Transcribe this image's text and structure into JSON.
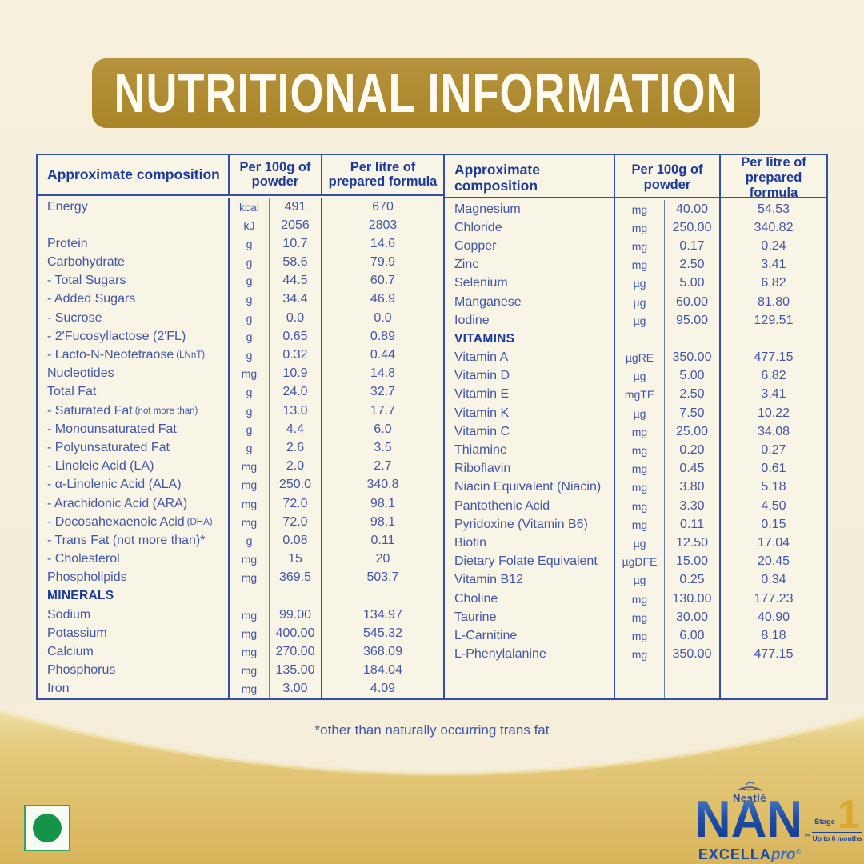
{
  "title": "NUTRITIONAL INFORMATION",
  "footnote": "*other than naturally occurring trans fat",
  "colors": {
    "banner_gold": "#ae8b30",
    "table_blue_line": "#33519f",
    "table_text_blue": "#4356a6",
    "header_text_blue": "#1c3a9a",
    "footer_gold": "#e2c474",
    "nan_blue": "#1f4da6",
    "stage_gold": "#d9a92e",
    "veg_green": "#15934b"
  },
  "icons": {
    "vegetarian_mark": "green-dot",
    "nestle_nest": "bird-nest"
  },
  "table": {
    "headers": {
      "composition": "Approximate composition",
      "per_100g": "Per 100g of powder",
      "per_litre": "Per litre of prepared formula"
    },
    "left": {
      "rows": [
        {
          "n": "Energy",
          "u": "kcal",
          "a": "491",
          "b": "670"
        },
        {
          "n": "",
          "u": "kJ",
          "a": "2056",
          "b": "2803"
        },
        {
          "n": "Protein",
          "u": "g",
          "a": "10.7",
          "b": "14.6"
        },
        {
          "n": "Carbohydrate",
          "u": "g",
          "a": "58.6",
          "b": "79.9"
        },
        {
          "n": "- Total Sugars",
          "u": "g",
          "a": "44.5",
          "b": "60.7"
        },
        {
          "n": "- Added Sugars",
          "u": "g",
          "a": "34.4",
          "b": "46.9"
        },
        {
          "n": "- Sucrose",
          "u": "g",
          "a": "0.0",
          "b": "0.0"
        },
        {
          "n": "- 2'Fucosyllactose (2'FL)",
          "u": "g",
          "a": "0.65",
          "b": "0.89"
        },
        {
          "n": "- Lacto-N-Neotetraose",
          "note": "(LNnT)",
          "u": "g",
          "a": "0.32",
          "b": "0.44"
        },
        {
          "n": "Nucleotides",
          "u": "mg",
          "a": "10.9",
          "b": "14.8"
        },
        {
          "n": "Total Fat",
          "u": "g",
          "a": "24.0",
          "b": "32.7"
        },
        {
          "n": "- Saturated Fat",
          "note": "(not more than)",
          "u": "g",
          "a": "13.0",
          "b": "17.7"
        },
        {
          "n": "- Monounsaturated Fat",
          "u": "g",
          "a": "4.4",
          "b": "6.0"
        },
        {
          "n": "- Polyunsaturated Fat",
          "u": "g",
          "a": "2.6",
          "b": "3.5"
        },
        {
          "n": "- Linoleic Acid (LA)",
          "u": "mg",
          "a": "2.0",
          "b": "2.7"
        },
        {
          "n": "- α-Linolenic Acid (ALA)",
          "u": "mg",
          "a": "250.0",
          "b": "340.8"
        },
        {
          "n": "- Arachidonic Acid (ARA)",
          "u": "mg",
          "a": "72.0",
          "b": "98.1"
        },
        {
          "n": "- Docosahexaenoic Acid",
          "note": "(DHA)",
          "u": "mg",
          "a": "72.0",
          "b": "98.1"
        },
        {
          "n": "- Trans Fat (not more than)*",
          "u": "g",
          "a": "0.08",
          "b": "0.11"
        },
        {
          "n": "- Cholesterol",
          "u": "mg",
          "a": "15",
          "b": "20"
        },
        {
          "n": "Phospholipids",
          "u": "mg",
          "a": "369.5",
          "b": "503.7"
        },
        {
          "n": "MINERALS",
          "type": "section",
          "u": "",
          "a": "",
          "b": ""
        },
        {
          "n": "Sodium",
          "u": "mg",
          "a": "99.00",
          "b": "134.97"
        },
        {
          "n": "Potassium",
          "u": "mg",
          "a": "400.00",
          "b": "545.32"
        },
        {
          "n": "Calcium",
          "u": "mg",
          "a": "270.00",
          "b": "368.09"
        },
        {
          "n": "Phosphorus",
          "u": "mg",
          "a": "135.00",
          "b": "184.04"
        },
        {
          "n": "Iron",
          "u": "mg",
          "a": "3.00",
          "b": "4.09"
        }
      ]
    },
    "right": {
      "rows": [
        {
          "n": "Magnesium",
          "u": "mg",
          "a": "40.00",
          "b": "54.53"
        },
        {
          "n": "Chloride",
          "u": "mg",
          "a": "250.00",
          "b": "340.82"
        },
        {
          "n": "Copper",
          "u": "mg",
          "a": "0.17",
          "b": "0.24"
        },
        {
          "n": "Zinc",
          "u": "mg",
          "a": "2.50",
          "b": "3.41"
        },
        {
          "n": "Selenium",
          "u": "µg",
          "a": "5.00",
          "b": "6.82"
        },
        {
          "n": "Manganese",
          "u": "µg",
          "a": "60.00",
          "b": "81.80"
        },
        {
          "n": "Iodine",
          "u": "µg",
          "a": "95.00",
          "b": "129.51"
        },
        {
          "n": "VITAMINS",
          "type": "section",
          "u": "",
          "a": "",
          "b": ""
        },
        {
          "n": "Vitamin A",
          "u": "µgRE",
          "a": "350.00",
          "b": "477.15"
        },
        {
          "n": "Vitamin D",
          "u": "µg",
          "a": "5.00",
          "b": "6.82"
        },
        {
          "n": "Vitamin E",
          "u": "mgTE",
          "a": "2.50",
          "b": "3.41"
        },
        {
          "n": "Vitamin K",
          "u": "µg",
          "a": "7.50",
          "b": "10.22"
        },
        {
          "n": "Vitamin C",
          "u": "mg",
          "a": "25.00",
          "b": "34.08"
        },
        {
          "n": "Thiamine",
          "u": "mg",
          "a": "0.20",
          "b": "0.27"
        },
        {
          "n": "Riboflavin",
          "u": "mg",
          "a": "0.45",
          "b": "0.61"
        },
        {
          "n": "Niacin Equivalent (Niacin)",
          "u": "mg",
          "a": "3.80",
          "b": "5.18"
        },
        {
          "n": "Pantothenic Acid",
          "u": "mg",
          "a": "3.30",
          "b": "4.50"
        },
        {
          "n": "Pyridoxine (Vitamin B6)",
          "u": "mg",
          "a": "0.11",
          "b": "0.15"
        },
        {
          "n": "Biotin",
          "u": "µg",
          "a": "12.50",
          "b": "17.04"
        },
        {
          "n": "Dietary Folate Equivalent",
          "u": "µgDFE",
          "a": "15.00",
          "b": "20.45"
        },
        {
          "n": "Vitamin B12",
          "u": "µg",
          "a": "0.25",
          "b": "0.34"
        },
        {
          "n": "Choline",
          "u": "mg",
          "a": "130.00",
          "b": "177.23"
        },
        {
          "n": "Taurine",
          "u": "mg",
          "a": "30.00",
          "b": "40.90"
        },
        {
          "n": "L-Carnitine",
          "u": "mg",
          "a": "6.00",
          "b": "8.18"
        },
        {
          "n": "L-Phenylalanine",
          "u": "mg",
          "a": "350.00",
          "b": "477.15"
        }
      ]
    }
  },
  "brand": {
    "nestle": "Nestlé",
    "name": "NAN",
    "trademark": "™",
    "sub_bold": "EXCELLA",
    "sub_italic": "pro",
    "sub_reg": "®",
    "stage_label": "Stage",
    "stage_number": "1",
    "age_range": "Up to 6 months"
  }
}
